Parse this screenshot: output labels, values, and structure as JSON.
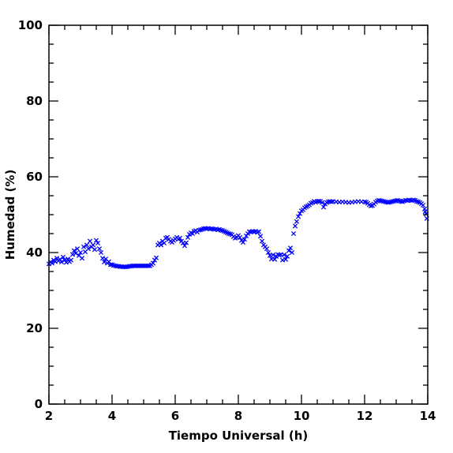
{
  "chart_data": {
    "type": "scatter",
    "xlabel": "Tiempo Universal (h)",
    "ylabel": "Humedad (%)",
    "xlim": [
      2,
      14
    ],
    "ylim": [
      0,
      100
    ],
    "x_ticks": [
      "2",
      "4",
      "6",
      "8",
      "10",
      "12",
      "14"
    ],
    "y_ticks": [
      "0",
      "20",
      "40",
      "60",
      "80",
      "100"
    ],
    "marker": "x",
    "grid": false,
    "series": [
      {
        "color": "#0000ff",
        "points": [
          [
            2.0,
            37.0
          ],
          [
            2.05,
            37.5
          ],
          [
            2.1,
            37.2
          ],
          [
            2.15,
            38.0
          ],
          [
            2.2,
            37.6
          ],
          [
            2.25,
            38.5
          ],
          [
            2.3,
            37.8
          ],
          [
            2.35,
            38.2
          ],
          [
            2.4,
            37.5
          ],
          [
            2.45,
            38.8
          ],
          [
            2.5,
            38.0
          ],
          [
            2.55,
            37.4
          ],
          [
            2.6,
            38.3
          ],
          [
            2.65,
            37.6
          ],
          [
            2.7,
            38.0
          ],
          [
            2.75,
            39.5
          ],
          [
            2.8,
            40.5
          ],
          [
            2.85,
            39.8
          ],
          [
            2.9,
            41.0
          ],
          [
            2.95,
            39.2
          ],
          [
            3.0,
            40.0
          ],
          [
            3.05,
            38.5
          ],
          [
            3.1,
            41.5
          ],
          [
            3.15,
            40.2
          ],
          [
            3.2,
            42.0
          ],
          [
            3.25,
            41.0
          ],
          [
            3.3,
            43.0
          ],
          [
            3.35,
            41.5
          ],
          [
            3.4,
            42.0
          ],
          [
            3.45,
            40.8
          ],
          [
            3.5,
            43.2
          ],
          [
            3.55,
            42.5
          ],
          [
            3.6,
            41.0
          ],
          [
            3.65,
            40.0
          ],
          [
            3.7,
            38.5
          ],
          [
            3.75,
            37.5
          ],
          [
            3.8,
            38.3
          ],
          [
            3.85,
            37.2
          ],
          [
            3.9,
            37.6
          ],
          [
            3.95,
            36.8
          ],
          [
            4.0,
            36.8
          ],
          [
            4.05,
            36.6
          ],
          [
            4.1,
            36.5
          ],
          [
            4.15,
            36.4
          ],
          [
            4.2,
            36.4
          ],
          [
            4.25,
            36.3
          ],
          [
            4.3,
            36.3
          ],
          [
            4.35,
            36.2
          ],
          [
            4.4,
            36.2
          ],
          [
            4.45,
            36.2
          ],
          [
            4.5,
            36.3
          ],
          [
            4.55,
            36.4
          ],
          [
            4.6,
            36.4
          ],
          [
            4.65,
            36.5
          ],
          [
            4.7,
            36.5
          ],
          [
            4.75,
            36.5
          ],
          [
            4.8,
            36.5
          ],
          [
            4.85,
            36.5
          ],
          [
            4.9,
            36.5
          ],
          [
            4.95,
            36.5
          ],
          [
            5.0,
            36.5
          ],
          [
            5.05,
            36.5
          ],
          [
            5.1,
            36.5
          ],
          [
            5.15,
            36.5
          ],
          [
            5.2,
            36.5
          ],
          [
            5.25,
            36.8
          ],
          [
            5.3,
            37.2
          ],
          [
            5.35,
            38.0
          ],
          [
            5.4,
            38.6
          ],
          [
            5.45,
            42.0
          ],
          [
            5.5,
            42.5
          ],
          [
            5.55,
            42.0
          ],
          [
            5.6,
            43.0
          ],
          [
            5.65,
            42.5
          ],
          [
            5.7,
            43.8
          ],
          [
            5.75,
            44.0
          ],
          [
            5.8,
            43.5
          ],
          [
            5.85,
            43.0
          ],
          [
            5.9,
            42.7
          ],
          [
            5.95,
            43.2
          ],
          [
            6.0,
            43.6
          ],
          [
            6.05,
            44.0
          ],
          [
            6.1,
            43.5
          ],
          [
            6.15,
            43.8
          ],
          [
            6.2,
            43.0
          ],
          [
            6.25,
            42.5
          ],
          [
            6.3,
            41.8
          ],
          [
            6.35,
            42.6
          ],
          [
            6.4,
            44.0
          ],
          [
            6.45,
            44.8
          ],
          [
            6.5,
            45.2
          ],
          [
            6.55,
            45.0
          ],
          [
            6.6,
            45.6
          ],
          [
            6.65,
            45.8
          ],
          [
            6.7,
            45.4
          ],
          [
            6.75,
            45.9
          ],
          [
            6.8,
            46.0
          ],
          [
            6.85,
            46.1
          ],
          [
            6.9,
            46.3
          ],
          [
            6.95,
            46.4
          ],
          [
            7.0,
            46.3
          ],
          [
            7.05,
            46.4
          ],
          [
            7.1,
            46.2
          ],
          [
            7.15,
            46.3
          ],
          [
            7.2,
            46.2
          ],
          [
            7.25,
            46.1
          ],
          [
            7.3,
            46.2
          ],
          [
            7.35,
            46.0
          ],
          [
            7.4,
            46.1
          ],
          [
            7.45,
            45.9
          ],
          [
            7.5,
            45.8
          ],
          [
            7.55,
            45.6
          ],
          [
            7.6,
            45.4
          ],
          [
            7.65,
            45.2
          ],
          [
            7.7,
            45.0
          ],
          [
            7.75,
            44.9
          ],
          [
            7.8,
            44.7
          ],
          [
            7.85,
            44.2
          ],
          [
            7.9,
            43.8
          ],
          [
            7.95,
            44.0
          ],
          [
            8.0,
            44.5
          ],
          [
            8.05,
            44.0
          ],
          [
            8.1,
            43.2
          ],
          [
            8.15,
            42.7
          ],
          [
            8.2,
            43.5
          ],
          [
            8.25,
            44.4
          ],
          [
            8.3,
            45.0
          ],
          [
            8.35,
            45.5
          ],
          [
            8.4,
            45.4
          ],
          [
            8.45,
            45.6
          ],
          [
            8.5,
            45.5
          ],
          [
            8.55,
            45.6
          ],
          [
            8.6,
            45.3
          ],
          [
            8.65,
            45.5
          ],
          [
            8.7,
            44.3
          ],
          [
            8.75,
            43.0
          ],
          [
            8.8,
            42.0
          ],
          [
            8.85,
            41.5
          ],
          [
            8.9,
            41.0
          ],
          [
            8.95,
            40.0
          ],
          [
            9.0,
            39.2
          ],
          [
            9.05,
            38.3
          ],
          [
            9.1,
            39.4
          ],
          [
            9.15,
            38.2
          ],
          [
            9.2,
            39.0
          ],
          [
            9.25,
            39.5
          ],
          [
            9.3,
            39.3
          ],
          [
            9.35,
            39.5
          ],
          [
            9.4,
            38.0
          ],
          [
            9.45,
            39.4
          ],
          [
            9.5,
            38.2
          ],
          [
            9.55,
            39.0
          ],
          [
            9.6,
            40.5
          ],
          [
            9.65,
            41.2
          ],
          [
            9.7,
            40.0
          ],
          [
            9.75,
            45.0
          ],
          [
            9.8,
            47.0
          ],
          [
            9.85,
            48.2
          ],
          [
            9.9,
            49.5
          ],
          [
            9.95,
            50.3
          ],
          [
            10.0,
            51.0
          ],
          [
            10.05,
            51.3
          ],
          [
            10.1,
            51.8
          ],
          [
            10.15,
            52.1
          ],
          [
            10.2,
            52.3
          ],
          [
            10.25,
            52.6
          ],
          [
            10.3,
            53.0
          ],
          [
            10.35,
            53.2
          ],
          [
            10.4,
            53.5
          ],
          [
            10.45,
            53.3
          ],
          [
            10.5,
            53.5
          ],
          [
            10.55,
            53.6
          ],
          [
            10.6,
            53.5
          ],
          [
            10.65,
            53.2
          ],
          [
            10.7,
            52.0
          ],
          [
            10.75,
            52.8
          ],
          [
            10.8,
            53.2
          ],
          [
            10.85,
            53.4
          ],
          [
            10.9,
            53.5
          ],
          [
            10.95,
            53.4
          ],
          [
            11.0,
            53.5
          ],
          [
            11.1,
            53.4
          ],
          [
            11.2,
            53.3
          ],
          [
            11.3,
            53.4
          ],
          [
            11.4,
            53.3
          ],
          [
            11.5,
            53.2
          ],
          [
            11.6,
            53.3
          ],
          [
            11.7,
            53.4
          ],
          [
            11.8,
            53.5
          ],
          [
            11.9,
            53.4
          ],
          [
            12.0,
            53.4
          ],
          [
            12.05,
            53.3
          ],
          [
            12.1,
            53.0
          ],
          [
            12.15,
            52.6
          ],
          [
            12.2,
            52.3
          ],
          [
            12.25,
            52.4
          ],
          [
            12.3,
            52.8
          ],
          [
            12.35,
            53.3
          ],
          [
            12.4,
            53.6
          ],
          [
            12.45,
            53.8
          ],
          [
            12.5,
            53.7
          ],
          [
            12.55,
            53.6
          ],
          [
            12.6,
            53.5
          ],
          [
            12.65,
            53.4
          ],
          [
            12.7,
            53.3
          ],
          [
            12.75,
            53.2
          ],
          [
            12.8,
            53.3
          ],
          [
            12.85,
            53.4
          ],
          [
            12.9,
            53.5
          ],
          [
            12.95,
            53.6
          ],
          [
            13.0,
            53.7
          ],
          [
            13.05,
            53.8
          ],
          [
            13.1,
            53.6
          ],
          [
            13.15,
            53.5
          ],
          [
            13.2,
            53.4
          ],
          [
            13.25,
            53.6
          ],
          [
            13.3,
            53.8
          ],
          [
            13.35,
            53.7
          ],
          [
            13.4,
            53.9
          ],
          [
            13.45,
            53.8
          ],
          [
            13.5,
            53.7
          ],
          [
            13.55,
            53.9
          ],
          [
            13.6,
            53.8
          ],
          [
            13.65,
            53.5
          ],
          [
            13.7,
            53.4
          ],
          [
            13.75,
            53.2
          ],
          [
            13.8,
            52.9
          ],
          [
            13.85,
            52.5
          ],
          [
            13.9,
            51.5
          ],
          [
            13.92,
            50.8
          ],
          [
            13.95,
            50.2
          ],
          [
            13.97,
            49.0
          ]
        ]
      }
    ]
  }
}
